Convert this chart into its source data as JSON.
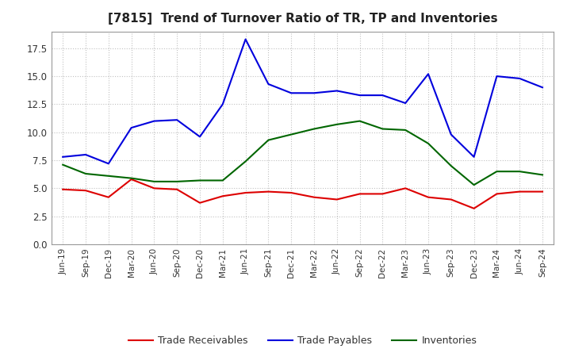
{
  "title": "[7815]  Trend of Turnover Ratio of TR, TP and Inventories",
  "labels": [
    "Jun-19",
    "Sep-19",
    "Dec-19",
    "Mar-20",
    "Jun-20",
    "Sep-20",
    "Dec-20",
    "Mar-21",
    "Jun-21",
    "Sep-21",
    "Dec-21",
    "Mar-22",
    "Jun-22",
    "Sep-22",
    "Dec-22",
    "Mar-23",
    "Jun-23",
    "Sep-23",
    "Dec-23",
    "Mar-24",
    "Jun-24",
    "Sep-24"
  ],
  "trade_receivables": [
    4.9,
    4.8,
    4.2,
    5.8,
    5.0,
    4.9,
    3.7,
    4.3,
    4.6,
    4.7,
    4.6,
    4.2,
    4.0,
    4.5,
    4.5,
    5.0,
    4.2,
    4.0,
    3.2,
    4.5,
    4.7,
    4.7
  ],
  "trade_payables": [
    7.8,
    8.0,
    7.2,
    10.4,
    11.0,
    11.1,
    9.6,
    12.5,
    18.3,
    14.3,
    13.5,
    13.5,
    13.7,
    13.3,
    13.3,
    12.6,
    15.2,
    9.8,
    7.8,
    15.0,
    14.8,
    14.0
  ],
  "inventories": [
    7.1,
    6.3,
    6.1,
    5.9,
    5.6,
    5.6,
    5.7,
    5.7,
    7.4,
    9.3,
    9.8,
    10.3,
    10.7,
    11.0,
    10.3,
    10.2,
    9.0,
    7.0,
    5.3,
    6.5,
    6.5,
    6.2
  ],
  "tr_color": "#dd0000",
  "tp_color": "#0000dd",
  "inv_color": "#006600",
  "ylim": [
    0,
    19.0
  ],
  "yticks": [
    0.0,
    2.5,
    5.0,
    7.5,
    10.0,
    12.5,
    15.0,
    17.5
  ],
  "background_color": "#ffffff",
  "grid_color": "#bbbbbb",
  "legend_labels": [
    "Trade Receivables",
    "Trade Payables",
    "Inventories"
  ]
}
